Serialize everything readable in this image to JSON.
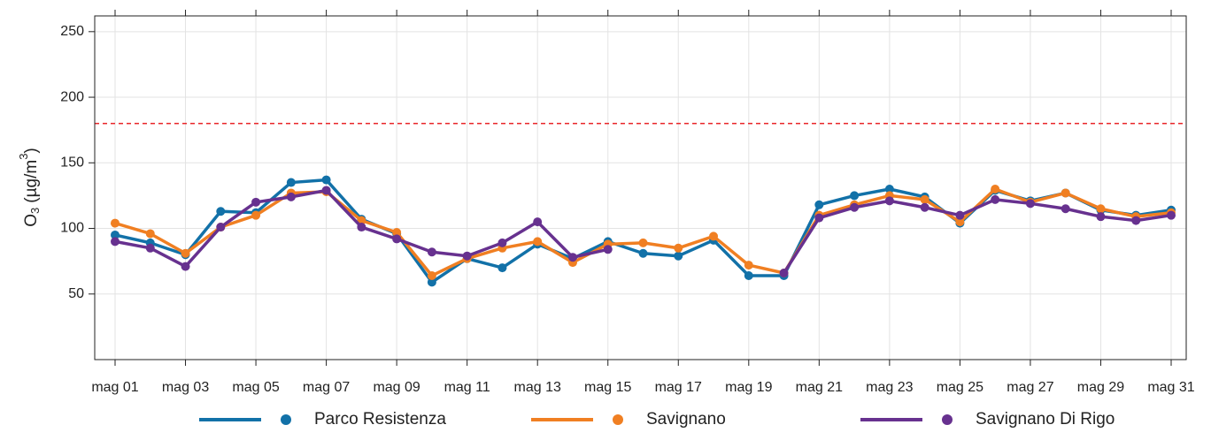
{
  "chart_data": {
    "type": "line",
    "ylabel": {
      "base": "O",
      "sub": "3",
      "unit": "(µg/m",
      "sup": "3",
      "close": ")"
    },
    "categories": [
      "mag 01",
      null,
      "mag 03",
      null,
      "mag 05",
      null,
      "mag 07",
      null,
      "mag 09",
      null,
      "mag 11",
      null,
      "mag 13",
      null,
      "mag 15",
      null,
      "mag 17",
      null,
      "mag 19",
      null,
      "mag 21",
      null,
      "mag 23",
      null,
      "mag 25",
      null,
      "mag 27",
      null,
      "mag 29",
      null,
      "mag 31"
    ],
    "series": [
      {
        "name": "Parco Resistenza",
        "color": "#1271a8",
        "values": [
          95,
          89,
          80,
          113,
          112,
          135,
          137,
          107,
          96,
          59,
          77,
          70,
          88,
          77,
          90,
          81,
          79,
          91,
          64,
          64,
          118,
          125,
          130,
          124,
          104,
          129,
          121,
          127,
          114,
          110,
          114
        ]
      },
      {
        "name": "Savignano",
        "color": "#f07f22",
        "values": [
          104,
          96,
          81,
          101,
          110,
          127,
          128,
          106,
          97,
          64,
          77,
          85,
          90,
          74,
          88,
          89,
          85,
          94,
          72,
          66,
          110,
          118,
          125,
          122,
          105,
          130,
          120,
          127,
          115,
          109,
          112
        ]
      },
      {
        "name": "Savignano Di Rigo",
        "color": "#67318f",
        "values": [
          90,
          85,
          71,
          101,
          120,
          124,
          129,
          101,
          92,
          82,
          79,
          89,
          105,
          78,
          84,
          null,
          null,
          null,
          null,
          66,
          108,
          116,
          121,
          116,
          110,
          122,
          119,
          115,
          109,
          106,
          110
        ]
      }
    ],
    "threshold": 180,
    "threshold_color": "#e8262a",
    "ylim": [
      0,
      262
    ],
    "yticks": [
      50,
      100,
      150,
      200,
      250
    ],
    "grid": true
  }
}
